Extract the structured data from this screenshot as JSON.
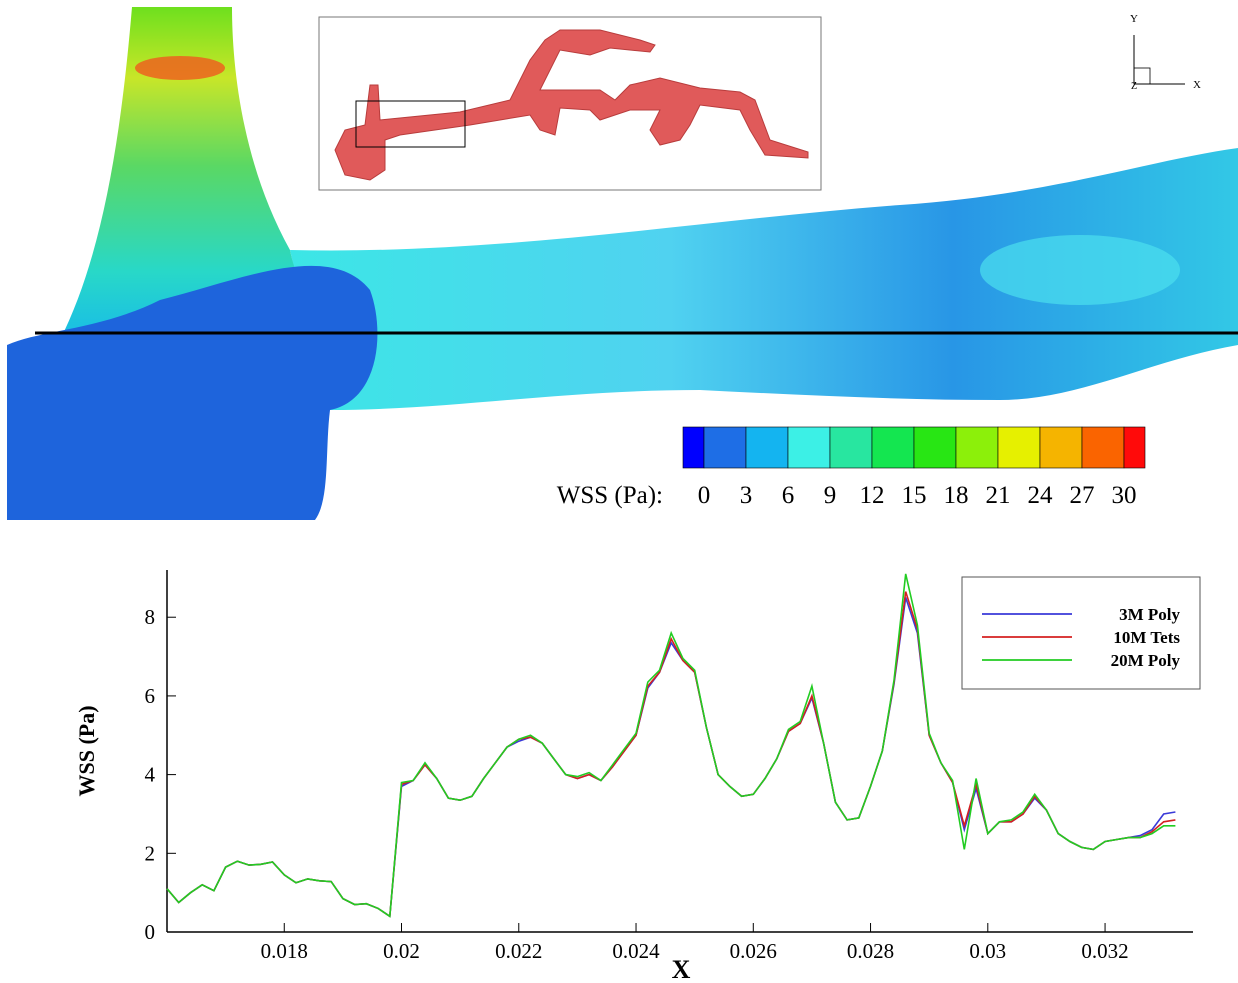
{
  "render": {
    "colorbar": {
      "label": "WSS (Pa):",
      "ticks": [
        0,
        3,
        6,
        9,
        12,
        15,
        18,
        21,
        24,
        27,
        30
      ],
      "colors": [
        "#0000ff",
        "#1e6ee6",
        "#14b4f0",
        "#3cf0e6",
        "#28e6a0",
        "#14e650",
        "#28e614",
        "#8cf00a",
        "#e6f000",
        "#f5b400",
        "#fa6400",
        "#ff0a0a"
      ]
    },
    "triad": {
      "y": "Y",
      "x": "X",
      "z": "Z"
    }
  },
  "chart_data": {
    "type": "line",
    "xlabel": "X",
    "ylabel": "WSS (Pa)",
    "legend": "upper right",
    "xlim": [
      0.016,
      0.0335
    ],
    "ylim": [
      0,
      9.2
    ],
    "xticks": [
      0.018,
      0.02,
      0.022,
      0.024,
      0.026,
      0.028,
      0.03,
      0.032
    ],
    "yticks": [
      0,
      2,
      4,
      6,
      8
    ],
    "x": [
      0.016,
      0.0162,
      0.0164,
      0.0166,
      0.0168,
      0.017,
      0.0172,
      0.0174,
      0.0176,
      0.0178,
      0.018,
      0.0182,
      0.0184,
      0.0186,
      0.0188,
      0.019,
      0.0192,
      0.0194,
      0.0196,
      0.0198,
      0.02,
      0.0202,
      0.0204,
      0.0206,
      0.0208,
      0.021,
      0.0212,
      0.0214,
      0.0216,
      0.0218,
      0.022,
      0.0222,
      0.0224,
      0.0226,
      0.0228,
      0.023,
      0.0232,
      0.0234,
      0.0236,
      0.0238,
      0.024,
      0.0242,
      0.0244,
      0.0246,
      0.0248,
      0.025,
      0.0252,
      0.0254,
      0.0256,
      0.0258,
      0.026,
      0.0262,
      0.0264,
      0.0266,
      0.0268,
      0.027,
      0.0272,
      0.0274,
      0.0276,
      0.0278,
      0.028,
      0.0282,
      0.0284,
      0.0286,
      0.0288,
      0.029,
      0.0292,
      0.0294,
      0.0296,
      0.0298,
      0.03,
      0.0302,
      0.0304,
      0.0306,
      0.0308,
      0.031,
      0.0312,
      0.0314,
      0.0316,
      0.0318,
      0.032,
      0.0322,
      0.0324,
      0.0326,
      0.0328,
      0.033,
      0.0332
    ],
    "series": [
      {
        "name": "3M Poly",
        "color": "#3a3ad8",
        "values": [
          1.1,
          0.75,
          1.0,
          1.2,
          1.05,
          1.65,
          1.8,
          1.7,
          1.72,
          1.78,
          1.45,
          1.25,
          1.35,
          1.3,
          1.28,
          0.85,
          0.7,
          0.72,
          0.6,
          0.4,
          3.7,
          3.85,
          4.25,
          3.9,
          3.4,
          3.35,
          3.45,
          3.9,
          4.3,
          4.7,
          4.85,
          4.95,
          4.8,
          4.4,
          4.0,
          3.9,
          4.0,
          3.85,
          4.2,
          4.6,
          5.0,
          6.2,
          6.6,
          7.35,
          6.9,
          6.6,
          5.2,
          4.0,
          3.7,
          3.45,
          3.5,
          3.9,
          4.4,
          5.1,
          5.3,
          5.95,
          4.8,
          3.3,
          2.85,
          2.9,
          3.7,
          4.6,
          6.3,
          8.5,
          7.6,
          5.0,
          4.3,
          3.8,
          2.6,
          3.65,
          2.5,
          2.8,
          2.8,
          3.0,
          3.4,
          3.1,
          2.5,
          2.3,
          2.15,
          2.1,
          2.3,
          2.35,
          2.4,
          2.45,
          2.6,
          3.0,
          3.05
        ]
      },
      {
        "name": "10M Tets",
        "color": "#d42020",
        "values": [
          1.1,
          0.75,
          1.0,
          1.2,
          1.05,
          1.65,
          1.8,
          1.7,
          1.72,
          1.78,
          1.45,
          1.25,
          1.35,
          1.3,
          1.28,
          0.85,
          0.7,
          0.72,
          0.6,
          0.4,
          3.75,
          3.85,
          4.25,
          3.9,
          3.4,
          3.35,
          3.45,
          3.9,
          4.3,
          4.7,
          4.9,
          4.95,
          4.8,
          4.4,
          4.0,
          3.9,
          4.0,
          3.85,
          4.2,
          4.6,
          5.0,
          6.25,
          6.6,
          7.45,
          6.9,
          6.6,
          5.2,
          4.0,
          3.7,
          3.45,
          3.5,
          3.9,
          4.4,
          5.1,
          5.3,
          6.0,
          4.8,
          3.3,
          2.85,
          2.9,
          3.7,
          4.6,
          6.35,
          8.65,
          7.7,
          5.0,
          4.3,
          3.8,
          2.7,
          3.75,
          2.5,
          2.8,
          2.8,
          3.0,
          3.45,
          3.1,
          2.5,
          2.3,
          2.15,
          2.1,
          2.3,
          2.35,
          2.4,
          2.4,
          2.55,
          2.8,
          2.85
        ]
      },
      {
        "name": "20M Poly",
        "color": "#22cc22",
        "values": [
          1.1,
          0.75,
          1.0,
          1.2,
          1.05,
          1.65,
          1.8,
          1.7,
          1.72,
          1.78,
          1.45,
          1.25,
          1.35,
          1.3,
          1.28,
          0.85,
          0.7,
          0.72,
          0.6,
          0.4,
          3.8,
          3.85,
          4.3,
          3.9,
          3.4,
          3.35,
          3.45,
          3.9,
          4.3,
          4.7,
          4.9,
          5.0,
          4.8,
          4.4,
          4.0,
          3.95,
          4.05,
          3.85,
          4.25,
          4.65,
          5.05,
          6.35,
          6.65,
          7.6,
          6.95,
          6.65,
          5.2,
          4.0,
          3.7,
          3.45,
          3.5,
          3.9,
          4.4,
          5.15,
          5.35,
          6.25,
          4.8,
          3.3,
          2.85,
          2.9,
          3.7,
          4.6,
          6.4,
          9.1,
          7.8,
          5.05,
          4.3,
          3.85,
          2.1,
          3.9,
          2.5,
          2.8,
          2.85,
          3.05,
          3.5,
          3.1,
          2.5,
          2.3,
          2.15,
          2.1,
          2.3,
          2.35,
          2.4,
          2.4,
          2.5,
          2.7,
          2.7
        ]
      }
    ]
  }
}
